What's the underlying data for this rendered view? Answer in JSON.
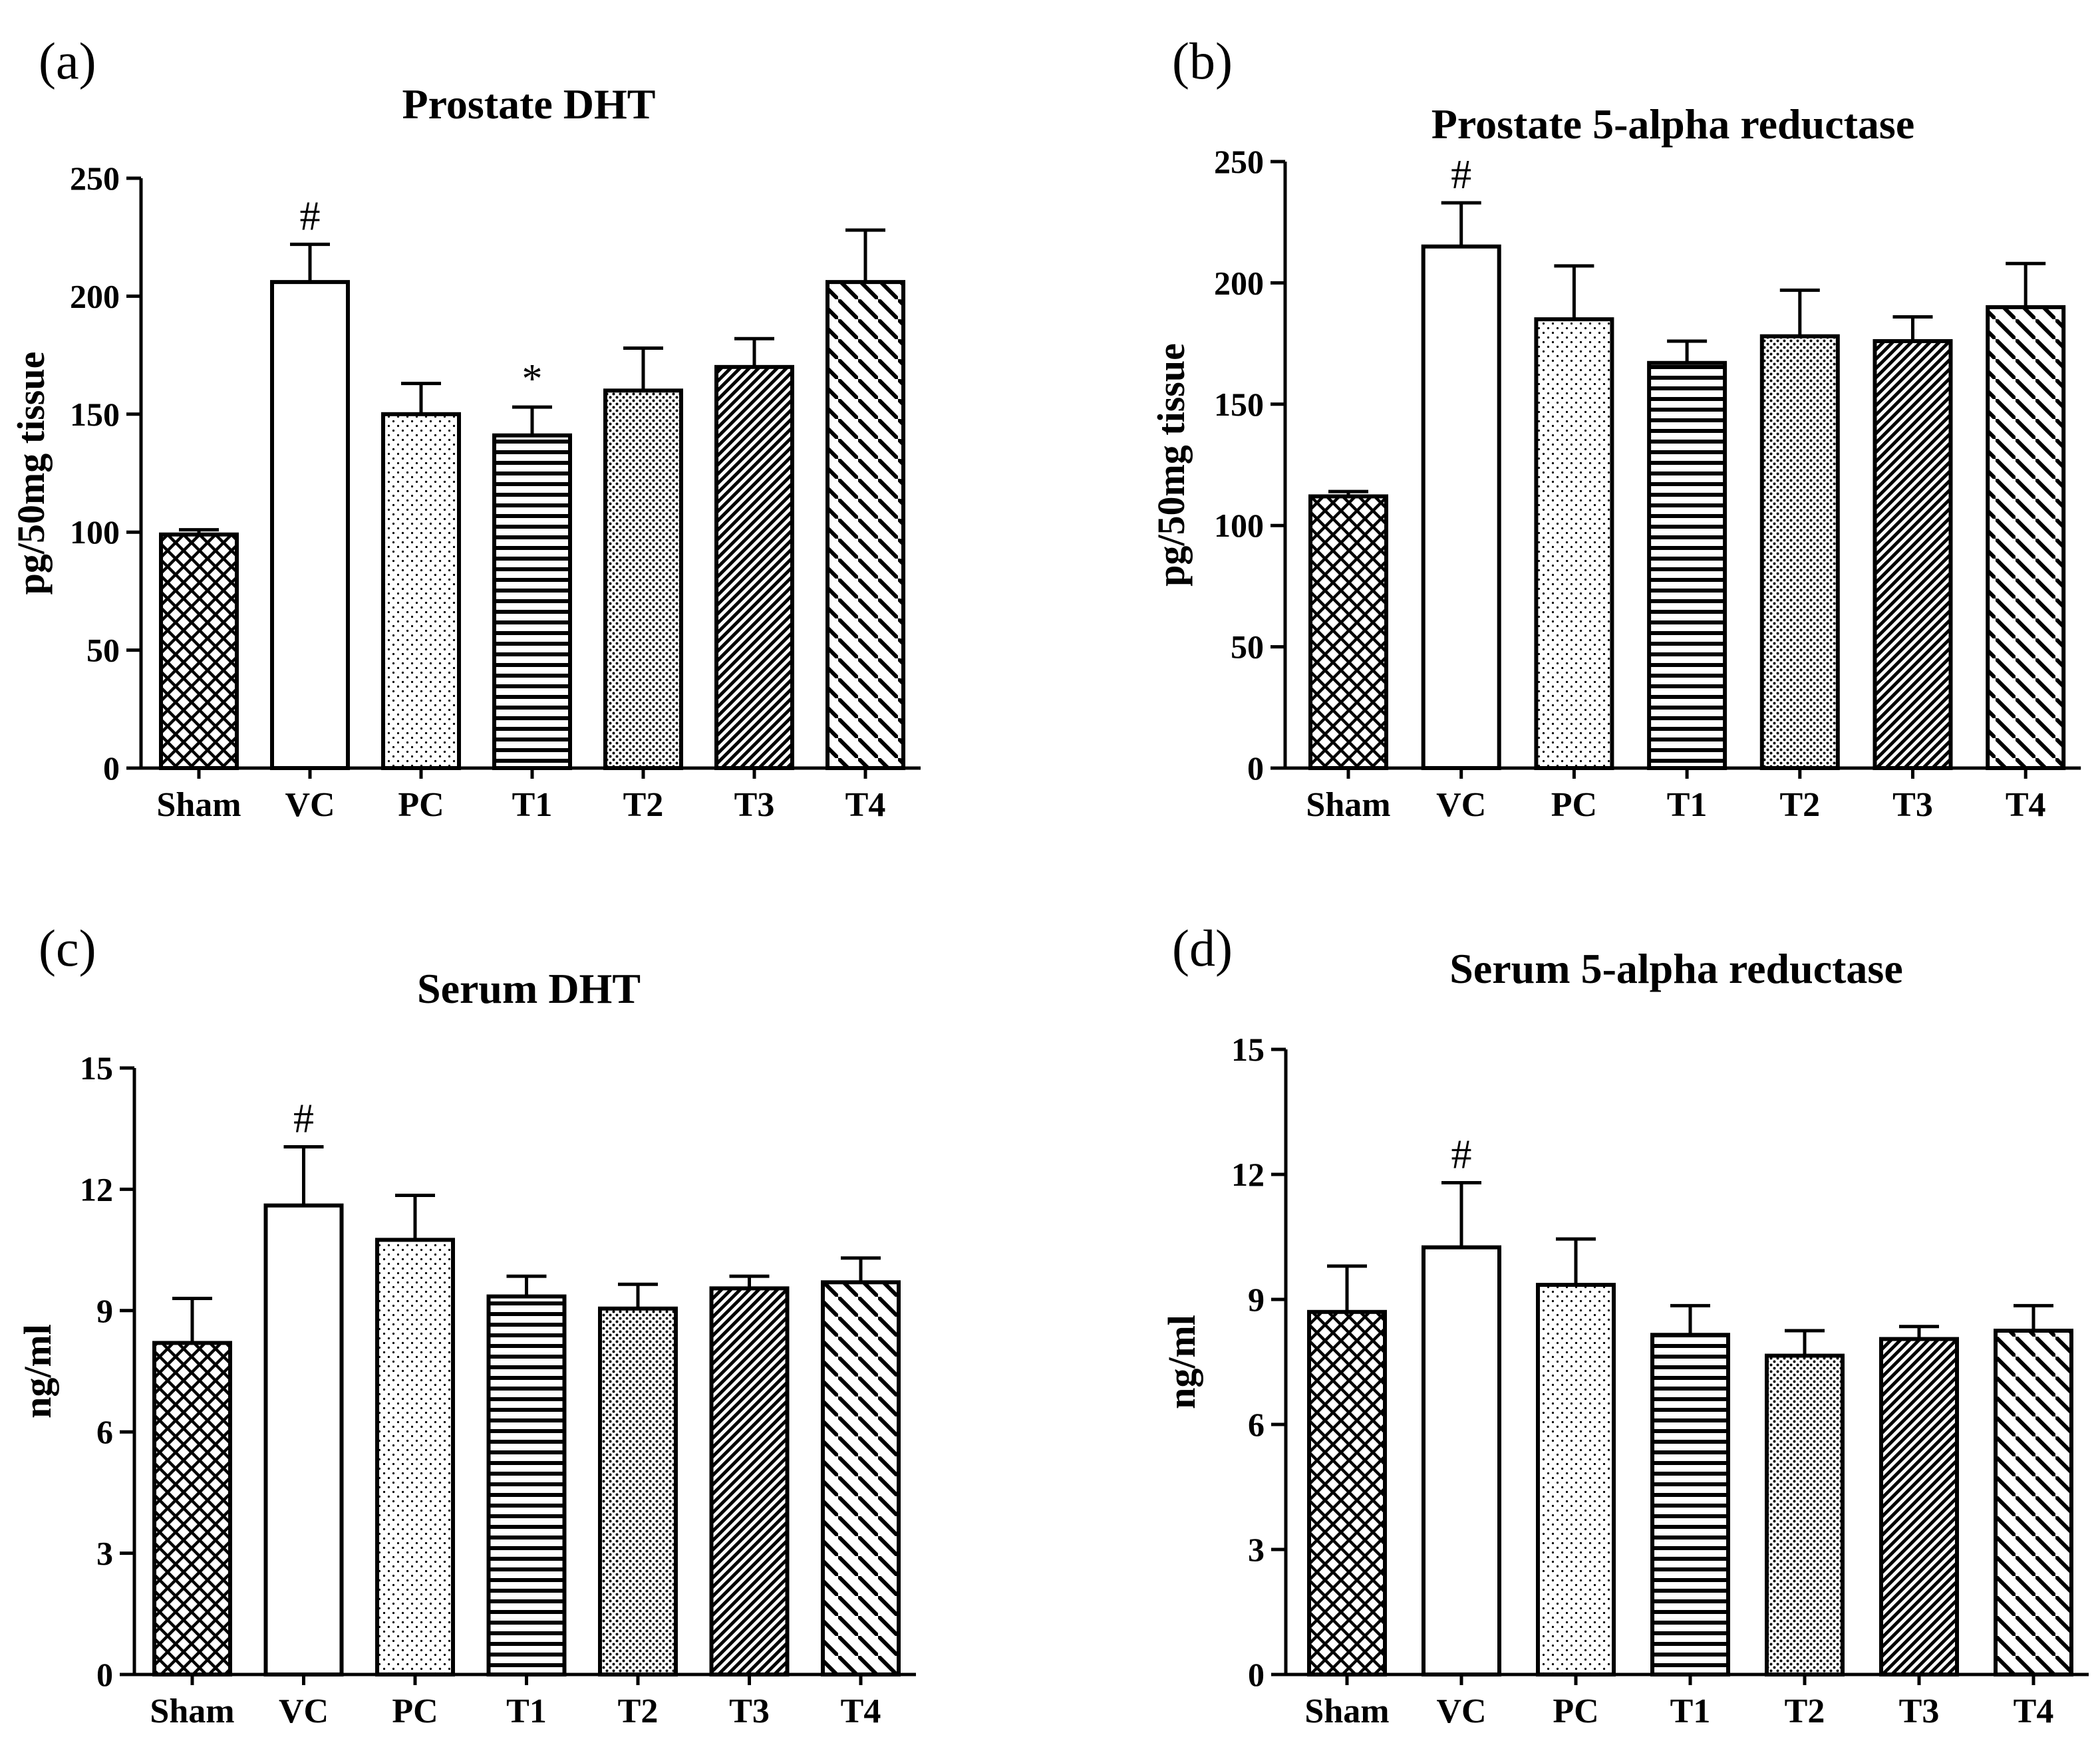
{
  "chart_data": [
    {
      "panel": "(a)",
      "type": "bar",
      "title": "Prostate DHT",
      "xlabel": "",
      "ylabel": "pg/50mg tissue",
      "ylim": [
        0,
        250
      ],
      "yticks": [
        "0",
        "50",
        "100",
        "150",
        "200",
        "250"
      ],
      "categories": [
        "Sham",
        "VC",
        "PC",
        "T1",
        "T2",
        "T3",
        "T4"
      ],
      "values": [
        99,
        206,
        150,
        141,
        160,
        170,
        206
      ],
      "errors": [
        2,
        16,
        13,
        12,
        18,
        12,
        22
      ],
      "markers": [
        "",
        "#",
        "",
        "*",
        "",
        "",
        ""
      ]
    },
    {
      "panel": "(b)",
      "type": "bar",
      "title": "Prostate 5-alpha reductase",
      "xlabel": "",
      "ylabel": "pg/50mg tissue",
      "ylim": [
        0,
        250
      ],
      "yticks": [
        "0",
        "50",
        "100",
        "150",
        "200",
        "250"
      ],
      "categories": [
        "Sham",
        "VC",
        "PC",
        "T1",
        "T2",
        "T3",
        "T4"
      ],
      "values": [
        112,
        215,
        185,
        167,
        178,
        176,
        190
      ],
      "errors": [
        2,
        18,
        22,
        9,
        19,
        10,
        18
      ],
      "markers": [
        "",
        "#",
        "",
        "",
        "",
        "",
        ""
      ]
    },
    {
      "panel": "(c)",
      "type": "bar",
      "title": "Serum DHT",
      "xlabel": "",
      "ylabel": "ng/ml",
      "ylim": [
        0,
        15
      ],
      "yticks": [
        "0",
        "3",
        "6",
        "9",
        "12",
        "15"
      ],
      "categories": [
        "Sham",
        "VC",
        "PC",
        "T1",
        "T2",
        "T3",
        "T4"
      ],
      "values": [
        8.2,
        11.6,
        10.75,
        9.35,
        9.05,
        9.55,
        9.7
      ],
      "errors": [
        1.1,
        1.45,
        1.1,
        0.5,
        0.6,
        0.3,
        0.6
      ],
      "markers": [
        "",
        "#",
        "",
        "",
        "",
        "",
        ""
      ]
    },
    {
      "panel": "(d)",
      "type": "bar",
      "title": "Serum 5-alpha reductase",
      "xlabel": "",
      "ylabel": "ng/ml",
      "ylim": [
        0,
        15
      ],
      "yticks": [
        "0",
        "3",
        "6",
        "9",
        "12",
        "15"
      ],
      "categories": [
        "Sham",
        "VC",
        "PC",
        "T1",
        "T2",
        "T3",
        "T4"
      ],
      "values": [
        8.7,
        10.25,
        9.35,
        8.15,
        7.65,
        8.05,
        8.25
      ],
      "errors": [
        1.1,
        1.55,
        1.1,
        0.7,
        0.6,
        0.3,
        0.6
      ],
      "markers": [
        "",
        "#",
        "",
        "",
        "",
        "",
        ""
      ]
    }
  ],
  "patterns": [
    "crosshatch-pattern",
    "none",
    "sparse-dots-pattern",
    "horizontal-lines-pattern",
    "dense-dots-pattern",
    "dense-diagonal-pattern",
    "wide-diagonal-pattern"
  ],
  "colors": {
    "ink": "#000000",
    "background": "#ffffff"
  }
}
